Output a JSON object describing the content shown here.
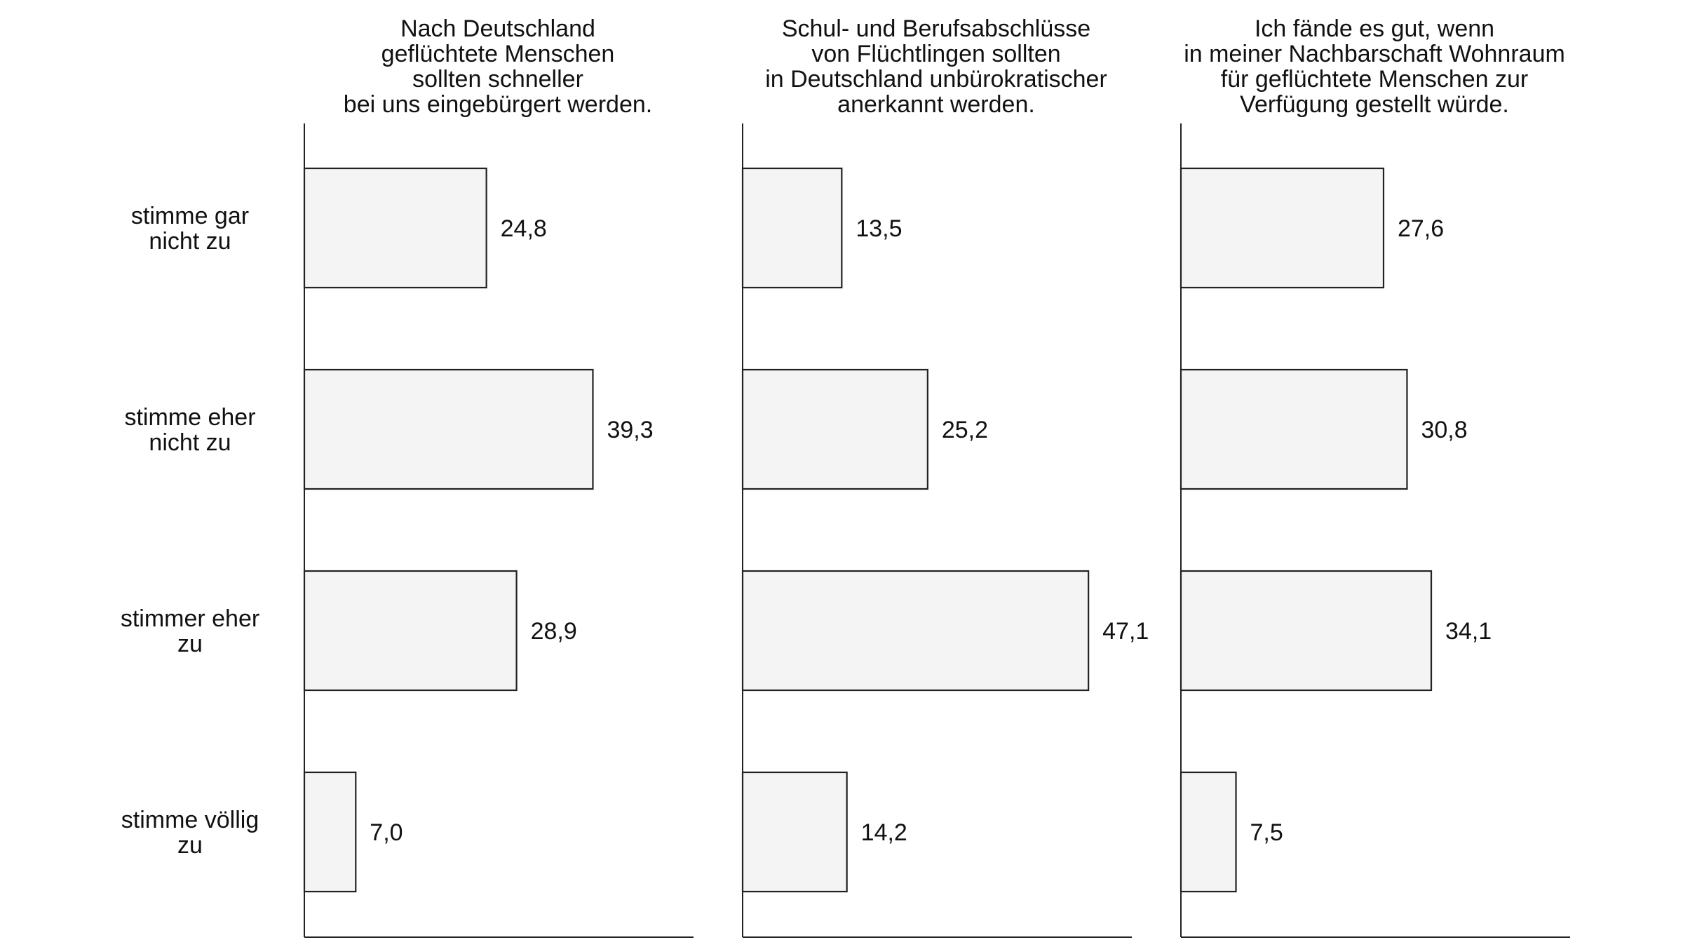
{
  "chart_data": {
    "type": "bar",
    "orientation": "horizontal",
    "categories": [
      [
        "stimme gar",
        "nicht zu"
      ],
      [
        "stimme eher",
        "nicht zu"
      ],
      [
        "stimmer eher",
        "zu"
      ],
      [
        "stimme völlig",
        "zu"
      ]
    ],
    "panels": [
      {
        "title": [
          "Nach Deutschland",
          "geflüchtete Menschen",
          "sollten schneller",
          "bei uns eingebürgert werden."
        ],
        "values": [
          24.8,
          39.3,
          28.9,
          7.0
        ],
        "labels": [
          "24,8",
          "39,3",
          "28,9",
          "7,0"
        ]
      },
      {
        "title": [
          "Schul- und Berufsabschlüsse",
          "von Flüchtlingen sollten",
          "in Deutschland unbürokratischer",
          "anerkannt werden."
        ],
        "values": [
          13.5,
          25.2,
          47.1,
          14.2
        ],
        "labels": [
          "13,5",
          "25,2",
          "47,1",
          "14,2"
        ]
      },
      {
        "title": [
          "Ich fände es gut, wenn",
          "in meiner Nachbarschaft Wohnraum",
          "für geflüchtete Menschen zur",
          "Verfügung gestellt würde."
        ],
        "values": [
          27.6,
          30.8,
          34.1,
          7.5
        ],
        "labels": [
          "27,6",
          "30,8",
          "34,1",
          "7,5"
        ]
      }
    ],
    "xlim": [
      0,
      53
    ],
    "grid": false,
    "legend": "none",
    "colors": {
      "bar_fill": "#f4f4f4",
      "bar_stroke": "#222222"
    }
  }
}
